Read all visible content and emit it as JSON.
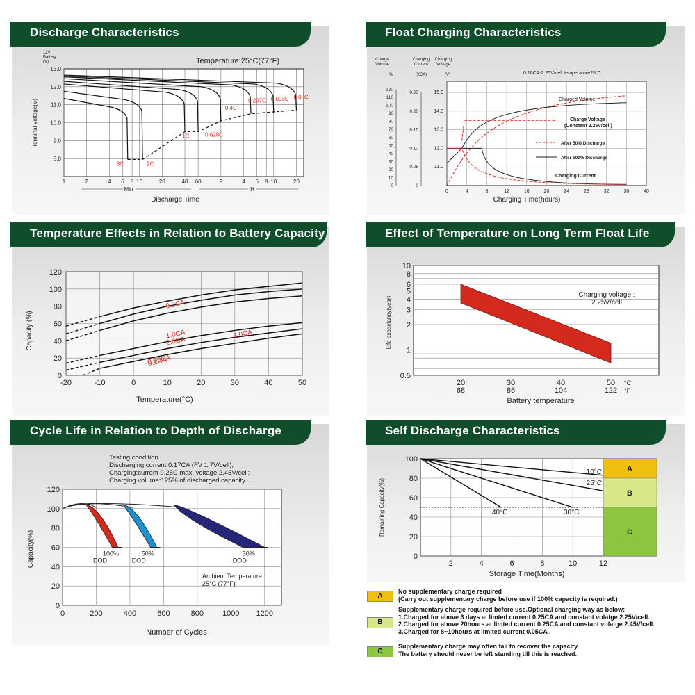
{
  "panels": [
    {
      "id": "discharge",
      "title": "Discharge Characteristics"
    },
    {
      "id": "float",
      "title": "Float Charging Characteristics"
    },
    {
      "id": "temp_capacity",
      "title": "Temperature Effects in Relation to Battery Capacity"
    },
    {
      "id": "float_life",
      "title": "Effect of Temperature on Long Term Float Life"
    },
    {
      "id": "cycle_life",
      "title": "Cycle Life in Relation to Depth of Discharge"
    },
    {
      "id": "self_discharge",
      "title": "Self Discharge Characteristics"
    }
  ],
  "chart_data": [
    {
      "id": "discharge",
      "type": "line",
      "title": "Temperature:25°C(77°F)",
      "ylabel": "Terminal Voltage(V)",
      "ylabel_top": [
        "12V",
        "Battery",
        "(V)"
      ],
      "xlabel": "Discharge Time",
      "xlabel_groups": [
        "Min",
        "H"
      ],
      "ylim": [
        7.0,
        13.0
      ],
      "yticks": [
        "13.0",
        "12.0",
        "11.0",
        "10.0",
        "9.0",
        "8.0"
      ],
      "xticks_min": [
        "1",
        "2",
        "4",
        "6",
        "8",
        "10",
        "20",
        "40",
        "60"
      ],
      "xticks_h": [
        "2",
        "4",
        "6",
        "8",
        "10",
        "20"
      ],
      "series": [
        {
          "name": "3C",
          "end_minutes": 7
        },
        {
          "name": "2C",
          "end_minutes": 11
        },
        {
          "name": "1C",
          "end_minutes": 40
        },
        {
          "name": "0.628C",
          "end_minutes": 60
        },
        {
          "name": "0.4C",
          "end_minutes": 120
        },
        {
          "name": "0.207C",
          "end_minutes": 300
        },
        {
          "name": "0.093C",
          "end_minutes": 600
        },
        {
          "name": "0.05C",
          "end_minutes": 1200
        }
      ]
    },
    {
      "id": "float",
      "type": "line",
      "title": "0.10CA-2.25V/cell   temperature25°C",
      "xlabel": "Charging Time(hours)",
      "axis_headers": [
        "Charge Volume",
        "%",
        "Charging Current",
        "(XCA)",
        "Charging Voltage",
        "(V)"
      ],
      "charge_volume_ticks": [
        "120",
        "110",
        "100",
        "90",
        "80",
        "70",
        "60",
        "50",
        "40",
        "30",
        "20",
        "10",
        "0"
      ],
      "current_ticks": [
        "0.25",
        "0.20",
        "0.15",
        "0.10",
        "0.05",
        "0"
      ],
      "voltage_ticks": [
        "15.0",
        "14.0",
        "13.0",
        "12.0",
        "11.0"
      ],
      "xticks": [
        "0",
        "4",
        "8",
        "12",
        "16",
        "20",
        "24",
        "28",
        "32",
        "36",
        "40"
      ],
      "annotations": [
        "Charged Volume",
        "Charge Voltage",
        "(Constant 2.25V/cell)",
        "After 50% Discharge",
        "After 100% Discharge",
        "Charging Current"
      ]
    },
    {
      "id": "temp_capacity",
      "type": "line",
      "ylabel": "Capacity (%)",
      "xlabel": "Temperature(°C)",
      "ylim": [
        0,
        120
      ],
      "xlim": [
        -20,
        50
      ],
      "yticks": [
        0,
        20,
        40,
        60,
        80,
        100,
        120
      ],
      "xticks": [
        -20,
        -10,
        0,
        10,
        20,
        30,
        40,
        50
      ],
      "series": [
        {
          "name": "0.05CA",
          "x": [
            -20,
            -10,
            0,
            10,
            20,
            30,
            40,
            50
          ],
          "y": [
            57,
            68,
            78,
            86,
            93,
            99,
            103,
            107
          ]
        },
        {
          "name": "0.1CA",
          "x": [
            -20,
            -10,
            0,
            10,
            20,
            30,
            40,
            50
          ],
          "y": [
            48,
            60,
            71,
            80,
            87,
            93,
            97,
            100
          ]
        },
        {
          "name": "0.2CA",
          "x": [
            -20,
            -10,
            0,
            10,
            20,
            30,
            40,
            50
          ],
          "y": [
            40,
            52,
            63,
            72,
            79,
            85,
            89,
            92
          ]
        },
        {
          "name": "1.0CA",
          "x": [
            -20,
            -10,
            0,
            10,
            20,
            30,
            40,
            50
          ],
          "y": [
            14,
            23,
            31,
            39,
            46,
            52,
            57,
            61
          ]
        },
        {
          "name": "2.0CA",
          "x": [
            -20,
            -10,
            0,
            10,
            20,
            30,
            40,
            50
          ],
          "y": [
            6,
            15,
            23,
            31,
            38,
            44,
            49,
            54
          ]
        },
        {
          "name": "3.0CA",
          "x": [
            -15,
            -10,
            0,
            10,
            20,
            30,
            40,
            50
          ],
          "y": [
            0,
            8,
            16,
            24,
            31,
            37,
            43,
            48
          ]
        }
      ]
    },
    {
      "id": "float_life",
      "type": "area",
      "ylabel": "Life expectancy(year)",
      "xlabel": "Battery temperature",
      "yticks": [
        "10",
        "8",
        "6",
        "5",
        "4",
        "3",
        "2",
        "1",
        "0.5"
      ],
      "yscale": "log",
      "xticks_c": [
        "20",
        "30",
        "40",
        "50"
      ],
      "xticks_f": [
        "68",
        "86",
        "104",
        "122"
      ],
      "unit_c": "°C",
      "unit_f": "°F",
      "annotation": "Charging voltage :\n2.25V/cell",
      "band": {
        "x": [
          20,
          50
        ],
        "upper": [
          6.0,
          1.2
        ],
        "lower": [
          3.6,
          0.7
        ]
      },
      "color": "#d42a1e"
    },
    {
      "id": "cycle_life",
      "type": "line",
      "notes": [
        "Testing condition",
        "Discharging:current 0.17CA (FV 1.7V/cell);",
        "Charging:current 0.25C max, voltage 2.45V/cell;",
        "Charging volume:125% of discharged capacity."
      ],
      "ylabel": "Capacity(%)",
      "xlabel": "Number of Cycles",
      "ylim": [
        0,
        120
      ],
      "xlim": [
        0,
        1300
      ],
      "yticks": [
        0,
        20,
        40,
        60,
        80,
        100,
        120
      ],
      "xticks": [
        0,
        200,
        400,
        600,
        800,
        1000,
        1200
      ],
      "ambient": "Ambient Temperature:\n25°C (77°F)",
      "series": [
        {
          "name": "100%",
          "sub": "DOD",
          "fade_start": 200,
          "fade_end": 330,
          "color": "#d42a1e"
        },
        {
          "name": "50%",
          "sub": "DOD",
          "fade_start": 420,
          "fade_end": 560,
          "color": "#1e8fd0"
        },
        {
          "name": "30%",
          "sub": "DOD",
          "fade_start": 720,
          "fade_end": 1200,
          "color": "#26257a"
        }
      ]
    },
    {
      "id": "self_discharge",
      "type": "line",
      "ylabel": "Remaining Capacity(%)",
      "xlabel": "Storage Time(Months)",
      "ylim": [
        0,
        100
      ],
      "xlim": [
        0,
        12
      ],
      "yticks": [
        0,
        20,
        40,
        60,
        80,
        100
      ],
      "xticks": [
        2,
        4,
        6,
        8,
        10,
        12
      ],
      "series": [
        {
          "name": "10°C",
          "x": [
            0,
            12
          ],
          "y": [
            100,
            83
          ]
        },
        {
          "name": "25°C",
          "x": [
            0,
            12
          ],
          "y": [
            100,
            67
          ]
        },
        {
          "name": "30°C",
          "x": [
            0,
            10
          ],
          "y": [
            100,
            50
          ]
        },
        {
          "name": "40°C",
          "x": [
            0,
            5.3
          ],
          "y": [
            100,
            50
          ]
        }
      ],
      "zones": [
        {
          "label": "A",
          "from": 80,
          "to": 100,
          "color": "#f0c010"
        },
        {
          "label": "B",
          "from": 50,
          "to": 80,
          "color": "#d6e88a"
        },
        {
          "label": "C",
          "from": 0,
          "to": 50,
          "color": "#8cc63f"
        }
      ]
    }
  ],
  "legend": [
    {
      "label": "A",
      "color": "#f0c010",
      "text": "No supplementary charge required\n(Carry out supplementary charge before use if 100% capacity is required.)"
    },
    {
      "label": "B",
      "color": "#d6e88a",
      "text": "Supplementary charge required before use.Optional charging way as below:\n1.Charged for above 3 days at limted current 0.25CA and constant volatge 2.25V/cell.\n2.Charged for above 20hours at limted current 0.25CA and constant volatge 2.45V/cell.\n3.Charged for 8~10hours at limited current 0.05CA ."
    },
    {
      "label": "C",
      "color": "#8cc63f",
      "text": "Supplementary charge may often fail to recover the capacity.\nThe battery should never be  left standing till this is reached."
    }
  ]
}
